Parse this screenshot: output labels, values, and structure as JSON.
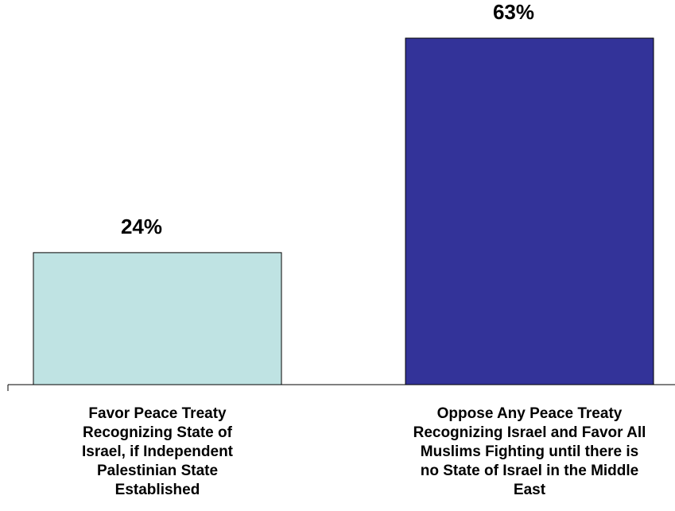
{
  "chart_data": {
    "type": "bar",
    "categories": [
      [
        "Favor Peace Treaty",
        "Recognizing State of",
        "Israel, if Independent",
        "Palestinian State",
        "Established"
      ],
      [
        "Oppose Any Peace Treaty",
        "Recognizing Israel and Favor All",
        "Muslims Fighting until there is",
        "no State of Israel in the Middle",
        "East"
      ]
    ],
    "values": [
      24,
      63
    ],
    "data_labels": [
      "24%",
      "63%"
    ],
    "bar_colors": [
      "#BFE3E3",
      "#333399"
    ],
    "ylim": [
      0,
      63
    ],
    "grid": false,
    "legend": "none"
  }
}
